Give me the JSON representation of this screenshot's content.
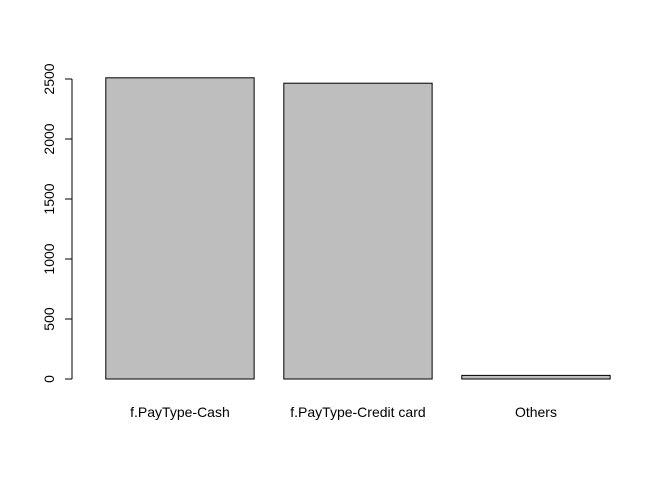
{
  "chart_data": {
    "type": "bar",
    "categories": [
      "f.PayType-Cash",
      "f.PayType-Credit card",
      "Others"
    ],
    "values": [
      2510,
      2465,
      30
    ],
    "title": "",
    "xlabel": "",
    "ylabel": "",
    "ylim": [
      0,
      2500
    ],
    "yticks": [
      "0",
      "500",
      "1000",
      "1500",
      "2000",
      "2500"
    ],
    "grid": false,
    "bar_color": "#bebebe",
    "bar_border_color": "#000000"
  }
}
